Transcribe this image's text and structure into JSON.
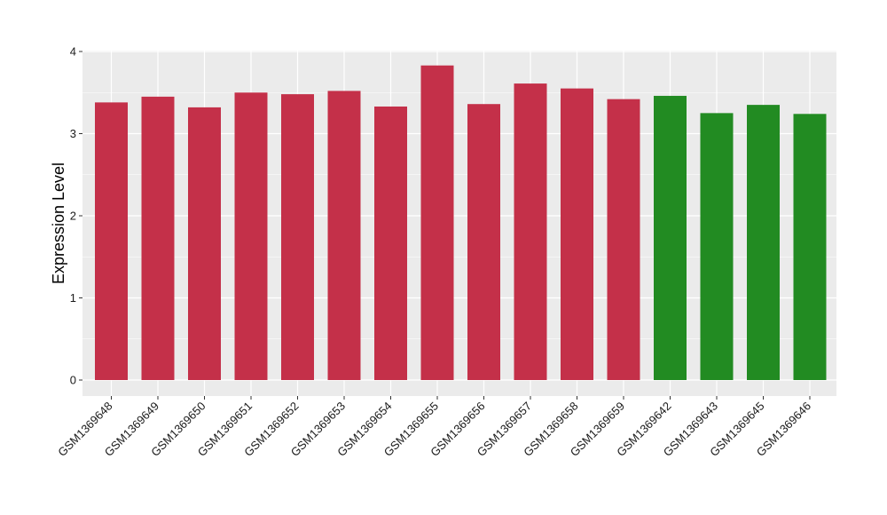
{
  "chart_data": {
    "type": "bar",
    "title": "",
    "xlabel": "",
    "ylabel": "Expression Level",
    "ylim": [
      0,
      4
    ],
    "yticks": [
      0,
      1,
      2,
      3,
      4
    ],
    "grid": true,
    "legend": "none",
    "categories": [
      "GSM1369648",
      "GSM1369649",
      "GSM1369650",
      "GSM1369651",
      "GSM1369652",
      "GSM1369653",
      "GSM1369654",
      "GSM1369655",
      "GSM1369656",
      "GSM1369657",
      "GSM1369658",
      "GSM1369659",
      "GSM1369642",
      "GSM1369643",
      "GSM1369645",
      "GSM1369646"
    ],
    "values": [
      3.38,
      3.45,
      3.32,
      3.5,
      3.48,
      3.52,
      3.33,
      3.83,
      3.36,
      3.61,
      3.55,
      3.42,
      3.46,
      3.25,
      3.35,
      3.24
    ],
    "bar_colors": [
      "#c43049",
      "#c43049",
      "#c43049",
      "#c43049",
      "#c43049",
      "#c43049",
      "#c43049",
      "#c43049",
      "#c43049",
      "#c43049",
      "#c43049",
      "#c43049",
      "#228b22",
      "#228b22",
      "#228b22",
      "#228b22"
    ],
    "panel_background": "#ebebeb",
    "grid_color": "#ffffff"
  }
}
